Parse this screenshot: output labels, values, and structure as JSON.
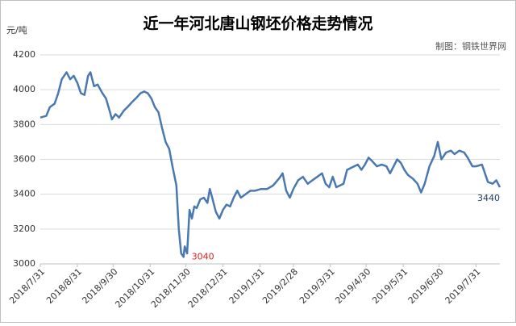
{
  "chart_data": {
    "type": "line",
    "title": "近一年河北唐山钢坯价格走势情况",
    "source": "制图：钢铁世界网",
    "ylabel": "元/吨",
    "x": [
      0,
      5,
      8,
      12,
      15,
      18,
      22,
      25,
      28,
      31,
      34,
      37,
      40,
      42,
      45,
      48,
      52,
      55,
      58,
      60,
      63,
      66,
      70,
      73,
      77,
      80,
      84,
      87,
      90,
      93,
      96,
      99,
      102,
      105,
      108,
      111,
      114,
      116,
      118,
      120,
      121,
      123,
      125,
      127,
      129,
      131,
      134,
      137,
      140,
      142,
      144,
      147,
      150,
      153,
      156,
      159,
      162,
      165,
      168,
      172,
      176,
      180,
      185,
      190,
      195,
      200,
      203,
      206,
      209,
      212,
      216,
      220,
      224,
      228,
      232,
      236,
      239,
      242,
      245,
      248,
      251,
      254,
      257,
      260,
      263,
      266,
      269,
      272,
      275,
      278,
      282,
      286,
      290,
      293,
      296,
      299,
      302,
      305,
      308,
      312,
      316,
      319,
      322,
      326,
      330,
      333,
      336,
      340,
      344,
      347,
      351,
      355,
      358,
      362,
      365,
      370,
      375,
      379,
      382,
      385
    ],
    "series": [
      {
        "name": "钢坯价格",
        "color": "#4a78b0",
        "values": [
          3840,
          3850,
          3900,
          3920,
          3980,
          4060,
          4100,
          4060,
          4080,
          4040,
          3980,
          3970,
          4080,
          4100,
          4020,
          4030,
          3980,
          3950,
          3880,
          3830,
          3860,
          3840,
          3880,
          3900,
          3930,
          3950,
          3980,
          3990,
          3980,
          3950,
          3900,
          3870,
          3780,
          3700,
          3660,
          3550,
          3450,
          3200,
          3060,
          3040,
          3100,
          3060,
          3310,
          3260,
          3330,
          3320,
          3370,
          3380,
          3350,
          3430,
          3380,
          3300,
          3260,
          3310,
          3340,
          3330,
          3380,
          3420,
          3380,
          3400,
          3420,
          3420,
          3430,
          3430,
          3450,
          3490,
          3520,
          3420,
          3380,
          3430,
          3480,
          3500,
          3460,
          3480,
          3500,
          3520,
          3460,
          3440,
          3500,
          3440,
          3450,
          3460,
          3540,
          3550,
          3560,
          3570,
          3540,
          3570,
          3610,
          3590,
          3560,
          3570,
          3560,
          3520,
          3560,
          3600,
          3580,
          3540,
          3510,
          3490,
          3460,
          3410,
          3460,
          3560,
          3620,
          3700,
          3600,
          3640,
          3650,
          3630,
          3650,
          3640,
          3610,
          3560,
          3560,
          3570,
          3470,
          3460,
          3480,
          3440
        ]
      }
    ],
    "annotations": [
      {
        "label": "3040",
        "x": 120,
        "y": 3040,
        "color": "#e02020"
      },
      {
        "label": "3440",
        "x": 385,
        "y": 3440,
        "color": "#1f3f66"
      }
    ],
    "xlim": [
      0,
      385
    ],
    "xticks": [
      {
        "value": 0,
        "label": "2018/7/31"
      },
      {
        "value": 31,
        "label": "2018/8/31"
      },
      {
        "value": 61,
        "label": "2018/9/30"
      },
      {
        "value": 92,
        "label": "2018/10/31"
      },
      {
        "value": 122,
        "label": "2018/11/30"
      },
      {
        "value": 153,
        "label": "2018/12/31"
      },
      {
        "value": 184,
        "label": "2019/1/31"
      },
      {
        "value": 212,
        "label": "2019/2/28"
      },
      {
        "value": 243,
        "label": "2019/3/31"
      },
      {
        "value": 273,
        "label": "2019/4/30"
      },
      {
        "value": 304,
        "label": "2019/5/31"
      },
      {
        "value": 334,
        "label": "2019/6/30"
      },
      {
        "value": 365,
        "label": "2019/7/31"
      }
    ],
    "ylim": [
      3000,
      4200
    ],
    "yticks": [
      3000,
      3200,
      3400,
      3600,
      3800,
      4000,
      4200
    ],
    "grid": true
  }
}
